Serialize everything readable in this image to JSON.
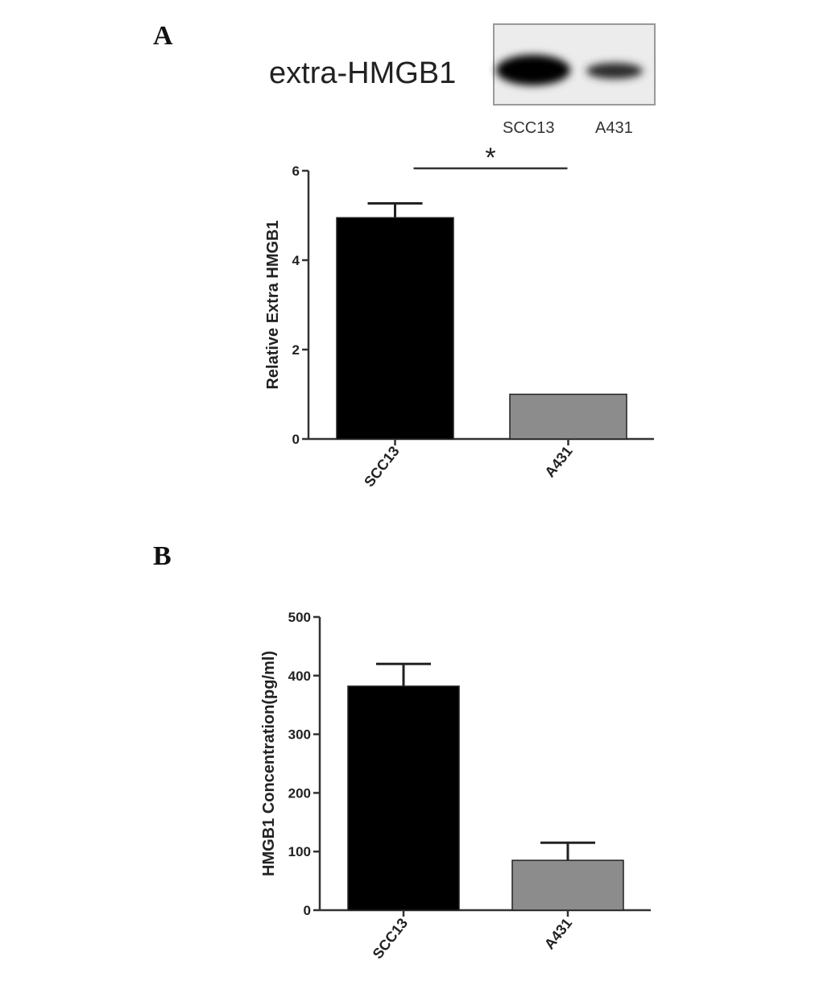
{
  "panels": {
    "a_label": "A",
    "b_label": "B"
  },
  "blot": {
    "label": "extra-HMGB1",
    "lanes": [
      "SCC13",
      "A431"
    ]
  },
  "colors": {
    "scc13_bar": "#000000",
    "a431_bar": "#8c8c8c",
    "axis": "#333333"
  },
  "chart_data": [
    {
      "type": "bar",
      "panel": "A",
      "categories": [
        "SCC13",
        "A431"
      ],
      "values": [
        4.95,
        1.0
      ],
      "errors": [
        0.32,
        0
      ],
      "ylabel": "Relative Extra HMGB1",
      "ylim": [
        0,
        6
      ],
      "yticks": [
        0,
        2,
        4,
        6
      ],
      "significance": "*"
    },
    {
      "type": "bar",
      "panel": "B",
      "categories": [
        "SCC13",
        "A431"
      ],
      "values": [
        382,
        85
      ],
      "errors": [
        38,
        30
      ],
      "ylabel": "HMGB1 Concentration(pg/ml)",
      "ylim": [
        0,
        500
      ],
      "yticks": [
        0,
        100,
        200,
        300,
        400,
        500
      ]
    }
  ]
}
